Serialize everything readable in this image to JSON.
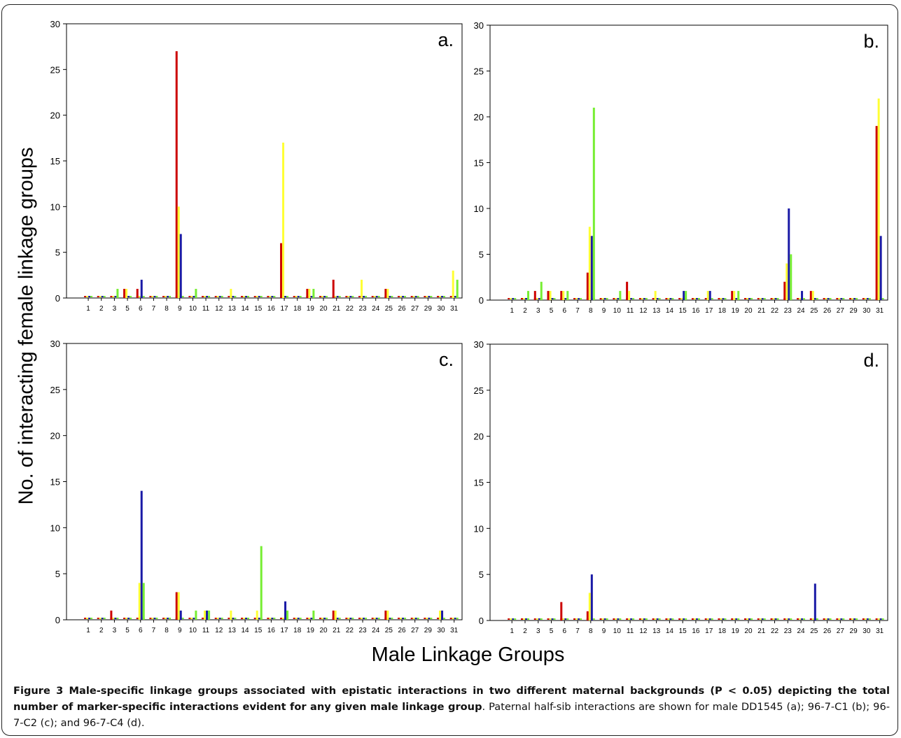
{
  "figure": {
    "y_axis_label": "No. of interacting female linkage groups",
    "x_axis_label": "Male Linkage Groups",
    "caption_bold": "Figure 3 Male-specific linkage groups associated with epistatic interactions in two different maternal backgrounds (P < 0.05) depicting the total number of marker-specific interactions evident for any given male linkage group",
    "caption_rest": ". Paternal half-sib interactions are shown for male DD1545 (a); 96-7-C1 (b); 96-7-C2 (c); and 96-7-C4 (d)."
  },
  "colors": {
    "red": "#cc0000",
    "yellow": "#ffff33",
    "blue": "#1a1aa6",
    "green": "#77ee33",
    "baseline_dash": [
      "#cc0000",
      "#ffff33",
      "#1a1aa6",
      "#77ee33"
    ]
  },
  "chart_data": [
    {
      "type": "bar",
      "panel_label": "a.",
      "categories": [
        "1",
        "2",
        "3",
        "5",
        "6",
        "7",
        "8",
        "9",
        "10",
        "11",
        "12",
        "13",
        "14",
        "15",
        "16",
        "17",
        "18",
        "19",
        "20",
        "21",
        "22",
        "23",
        "24",
        "25",
        "26",
        "27",
        "29",
        "30",
        "31"
      ],
      "ylim": [
        0,
        30
      ],
      "yticks": [
        0,
        5,
        10,
        15,
        20,
        25,
        30
      ],
      "series": [
        {
          "color": "red",
          "values": [
            0,
            0,
            0,
            1,
            1,
            0,
            0,
            27,
            0,
            0,
            0,
            0,
            0,
            0,
            0,
            6,
            0,
            1,
            0,
            2,
            0,
            0,
            0,
            1,
            0,
            0,
            0,
            0,
            0
          ]
        },
        {
          "color": "yellow",
          "values": [
            0,
            0,
            0,
            1,
            0,
            0,
            0,
            10,
            0,
            0,
            0,
            1,
            0,
            0,
            0,
            17,
            0,
            1,
            0,
            0,
            0,
            2,
            0,
            1,
            0,
            0,
            0,
            0,
            3
          ]
        },
        {
          "color": "blue",
          "values": [
            0,
            0,
            0,
            0,
            2,
            0,
            0,
            7,
            0,
            0,
            0,
            0,
            0,
            0,
            0,
            0,
            0,
            0,
            0,
            0,
            0,
            0,
            0,
            0,
            0,
            0,
            0,
            0,
            0
          ]
        },
        {
          "color": "green",
          "values": [
            0,
            0,
            1,
            0,
            0,
            0,
            0,
            0,
            1,
            0,
            0,
            0,
            0,
            0,
            0,
            0,
            0,
            1,
            0,
            0,
            0,
            0,
            0,
            0,
            0,
            0,
            0,
            0,
            2
          ]
        }
      ]
    },
    {
      "type": "bar",
      "panel_label": "b.",
      "categories": [
        "1",
        "2",
        "3",
        "5",
        "6",
        "7",
        "8",
        "9",
        "10",
        "11",
        "12",
        "13",
        "14",
        "15",
        "16",
        "17",
        "18",
        "19",
        "20",
        "21",
        "22",
        "23",
        "24",
        "25",
        "26",
        "27",
        "29",
        "30",
        "31"
      ],
      "ylim": [
        0,
        30
      ],
      "yticks": [
        0,
        5,
        10,
        15,
        20,
        25,
        30
      ],
      "series": [
        {
          "color": "red",
          "values": [
            0,
            0,
            1,
            1,
            1,
            0,
            3,
            0,
            0,
            2,
            0,
            0,
            0,
            0,
            0,
            0,
            0,
            1,
            0,
            0,
            0,
            2,
            0,
            1,
            0,
            0,
            0,
            0,
            19
          ]
        },
        {
          "color": "yellow",
          "values": [
            0,
            0,
            0,
            1,
            1,
            0,
            8,
            0,
            0,
            1,
            0,
            1,
            0,
            0,
            0,
            1,
            0,
            1,
            0,
            0,
            0,
            4,
            0,
            1,
            0,
            0,
            0,
            0,
            22
          ]
        },
        {
          "color": "blue",
          "values": [
            0,
            0,
            0,
            0,
            0,
            0,
            7,
            0,
            0,
            0,
            0,
            0,
            0,
            1,
            0,
            1,
            0,
            0,
            0,
            0,
            0,
            10,
            1,
            0,
            0,
            0,
            0,
            0,
            7
          ]
        },
        {
          "color": "green",
          "values": [
            0,
            1,
            2,
            0,
            1,
            0,
            21,
            0,
            1,
            0,
            0,
            0,
            0,
            1,
            0,
            0,
            0,
            1,
            0,
            0,
            0,
            5,
            0,
            0,
            0,
            0,
            0,
            0,
            0
          ]
        }
      ]
    },
    {
      "type": "bar",
      "panel_label": "c.",
      "categories": [
        "1",
        "2",
        "3",
        "5",
        "6",
        "7",
        "8",
        "9",
        "10",
        "11",
        "12",
        "13",
        "14",
        "15",
        "16",
        "17",
        "18",
        "19",
        "20",
        "21",
        "22",
        "23",
        "24",
        "25",
        "26",
        "27",
        "29",
        "30",
        "31"
      ],
      "ylim": [
        0,
        30
      ],
      "yticks": [
        0,
        5,
        10,
        15,
        20,
        25,
        30
      ],
      "series": [
        {
          "color": "red",
          "values": [
            0,
            0,
            1,
            0,
            0,
            0,
            0,
            3,
            0,
            0,
            0,
            0,
            0,
            0,
            0,
            0,
            0,
            0,
            0,
            1,
            0,
            0,
            0,
            1,
            0,
            0,
            0,
            0,
            0
          ]
        },
        {
          "color": "yellow",
          "values": [
            0,
            0,
            0,
            0,
            4,
            0,
            0,
            3,
            0,
            1,
            0,
            1,
            0,
            1,
            0,
            0,
            0,
            0,
            0,
            1,
            0,
            0,
            0,
            1,
            0,
            0,
            0,
            1,
            0
          ]
        },
        {
          "color": "blue",
          "values": [
            0,
            0,
            0,
            0,
            14,
            0,
            0,
            1,
            0,
            1,
            0,
            0,
            0,
            0,
            0,
            2,
            0,
            0,
            0,
            0,
            0,
            0,
            0,
            0,
            0,
            0,
            0,
            1,
            0
          ]
        },
        {
          "color": "green",
          "values": [
            0,
            0,
            0,
            0,
            4,
            0,
            0,
            0,
            1,
            1,
            0,
            0,
            0,
            8,
            0,
            1,
            0,
            1,
            0,
            0,
            0,
            0,
            0,
            0,
            0,
            0,
            0,
            0,
            0
          ]
        }
      ]
    },
    {
      "type": "bar",
      "panel_label": "d.",
      "categories": [
        "1",
        "2",
        "3",
        "5",
        "6",
        "7",
        "8",
        "9",
        "10",
        "11",
        "12",
        "13",
        "14",
        "15",
        "16",
        "17",
        "18",
        "19",
        "20",
        "21",
        "22",
        "23",
        "24",
        "25",
        "26",
        "27",
        "29",
        "30",
        "31"
      ],
      "ylim": [
        0,
        30
      ],
      "yticks": [
        0,
        5,
        10,
        15,
        20,
        25,
        30
      ],
      "series": [
        {
          "color": "red",
          "values": [
            0,
            0,
            0,
            0,
            2,
            0,
            1,
            0,
            0,
            0,
            0,
            0,
            0,
            0,
            0,
            0,
            0,
            0,
            0,
            0,
            0,
            0,
            0,
            0,
            0,
            0,
            0,
            0,
            0
          ]
        },
        {
          "color": "yellow",
          "values": [
            0,
            0,
            0,
            0,
            0,
            0,
            3,
            0,
            0,
            0,
            0,
            0,
            0,
            0,
            0,
            0,
            0,
            0,
            0,
            0,
            0,
            0,
            0,
            0,
            0,
            0,
            0,
            0,
            0
          ]
        },
        {
          "color": "blue",
          "values": [
            0,
            0,
            0,
            0,
            0,
            0,
            5,
            0,
            0,
            0,
            0,
            0,
            0,
            0,
            0,
            0,
            0,
            0,
            0,
            0,
            0,
            0,
            0,
            4,
            0,
            0,
            0,
            0,
            0
          ]
        },
        {
          "color": "green",
          "values": [
            0,
            0,
            0,
            0,
            0,
            0,
            0,
            0,
            0,
            0,
            0,
            0,
            0,
            0,
            0,
            0,
            0,
            0,
            0,
            0,
            0,
            0,
            0,
            0,
            0,
            0,
            0,
            0,
            0
          ]
        }
      ]
    }
  ]
}
